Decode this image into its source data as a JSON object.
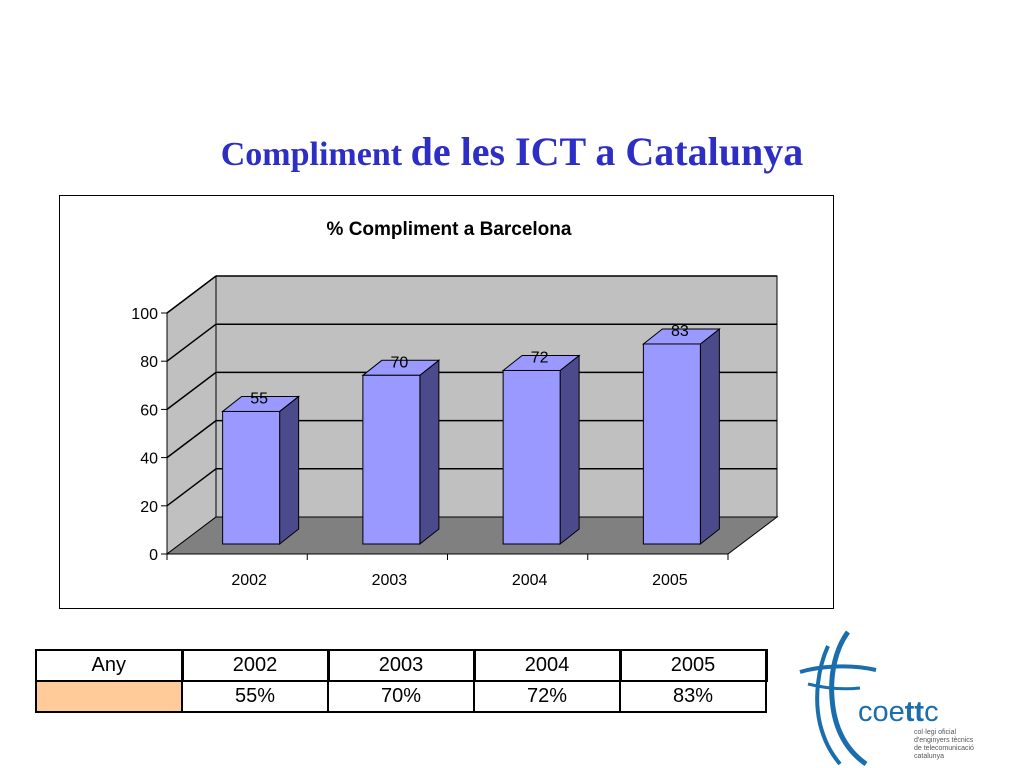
{
  "slide": {
    "title_part1": "Compliment ",
    "title_part2": "de les ICT a Catalunya"
  },
  "chart_data": {
    "type": "bar",
    "title": "% Compliment a Barcelona",
    "categories": [
      "2002",
      "2003",
      "2004",
      "2005"
    ],
    "values": [
      55,
      70,
      72,
      83
    ],
    "ylim": [
      0,
      100
    ],
    "yticks": [
      "0",
      "20",
      "40",
      "60",
      "80",
      "100"
    ],
    "xlabel": "",
    "ylabel": "",
    "grid": true,
    "style": "3d",
    "bar_color": "#9999ff",
    "bar_side_color": "#4b4b8c",
    "wall_color": "#c0c0c0",
    "floor_color": "#808080",
    "data_labels": [
      "55",
      "70",
      "72",
      "83"
    ]
  },
  "table": {
    "header_label": "Any",
    "years": [
      "2002",
      "2003",
      "2004",
      "2005"
    ],
    "row_values": [
      "55%",
      "70%",
      "72%",
      "83%"
    ],
    "swatch_color": "#ffcc99"
  },
  "logo": {
    "brand_prefix": "coe",
    "brand_bold": "tt",
    "brand_suffix": "c",
    "tagline": [
      "col·legi oficial",
      "d'enginyers tècnics",
      "de telecomunicació",
      "catalunya"
    ]
  }
}
